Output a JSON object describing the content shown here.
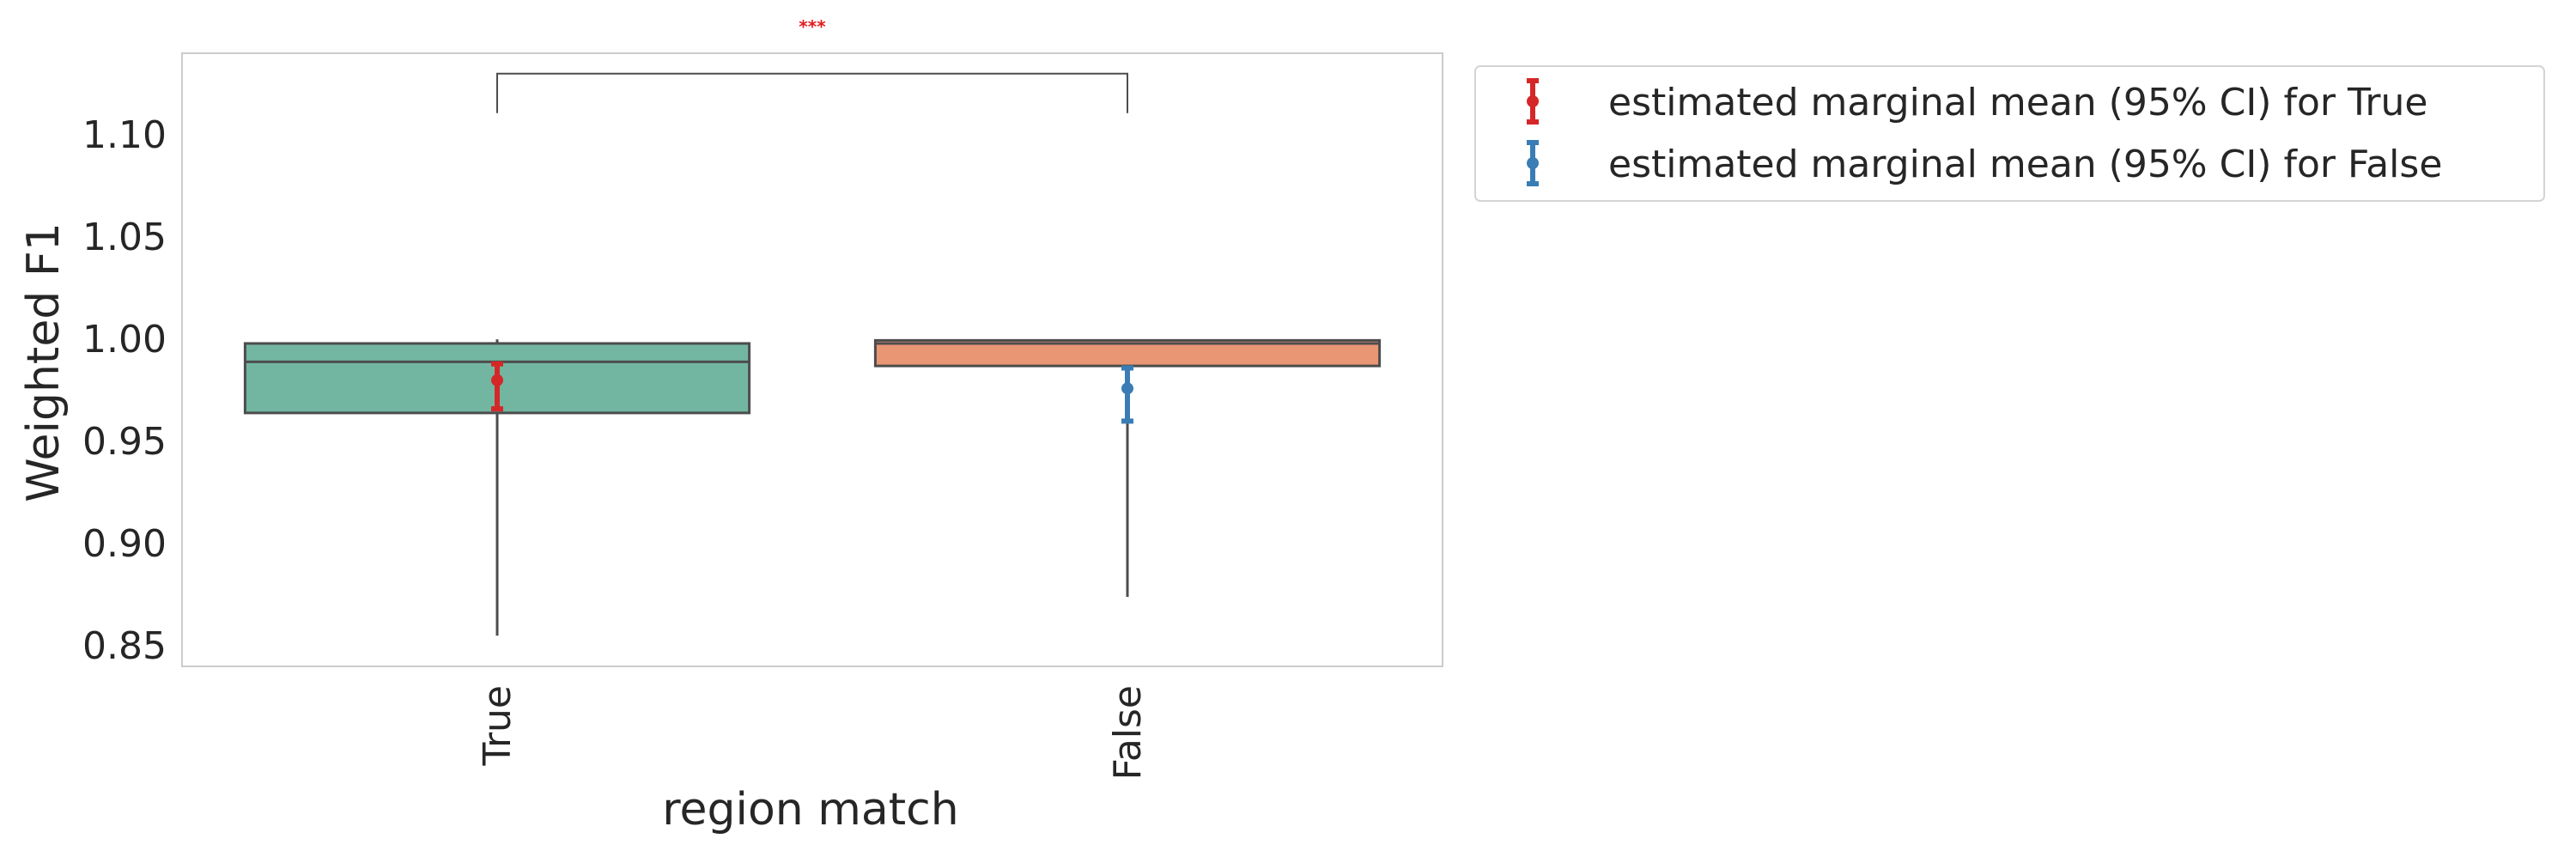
{
  "chart_data": {
    "type": "box",
    "xlabel": "region match",
    "ylabel": "Weighted F1",
    "categories": [
      "True",
      "False"
    ],
    "ylim": [
      0.84,
      1.14
    ],
    "yticks": [
      0.85,
      0.9,
      0.95,
      1.0,
      1.05,
      1.1
    ],
    "ytick_labels": [
      "0.85",
      "0.90",
      "0.95",
      "1.00",
      "1.05",
      "1.10"
    ],
    "grid": false,
    "boxes": [
      {
        "category": "True",
        "whisker_low": 0.855,
        "q1": 0.964,
        "median": 0.989,
        "q3": 0.998,
        "whisker_high": 1.0,
        "color": "#72b6a1"
      },
      {
        "category": "False",
        "whisker_low": 0.874,
        "q1": 0.987,
        "median": 0.998,
        "q3": 0.9995,
        "whisker_high": 1.0,
        "color": "#e99675"
      }
    ],
    "emm": [
      {
        "category": "True",
        "mean": 0.98,
        "ci_low": 0.966,
        "ci_high": 0.988,
        "color": "#d62728"
      },
      {
        "category": "False",
        "mean": 0.976,
        "ci_low": 0.96,
        "ci_high": 0.986,
        "color": "#3a7db5"
      }
    ],
    "significance": {
      "between": [
        "True",
        "False"
      ],
      "level": 1.13,
      "label": "***",
      "label_color": "#e41a1c"
    },
    "legend": {
      "placement": "outside-right-top",
      "entries": [
        {
          "label": "estimated marginal mean (95% CI) for True",
          "color": "#d62728"
        },
        {
          "label": "estimated marginal mean (95% CI) for False",
          "color": "#3a7db5"
        }
      ]
    }
  }
}
